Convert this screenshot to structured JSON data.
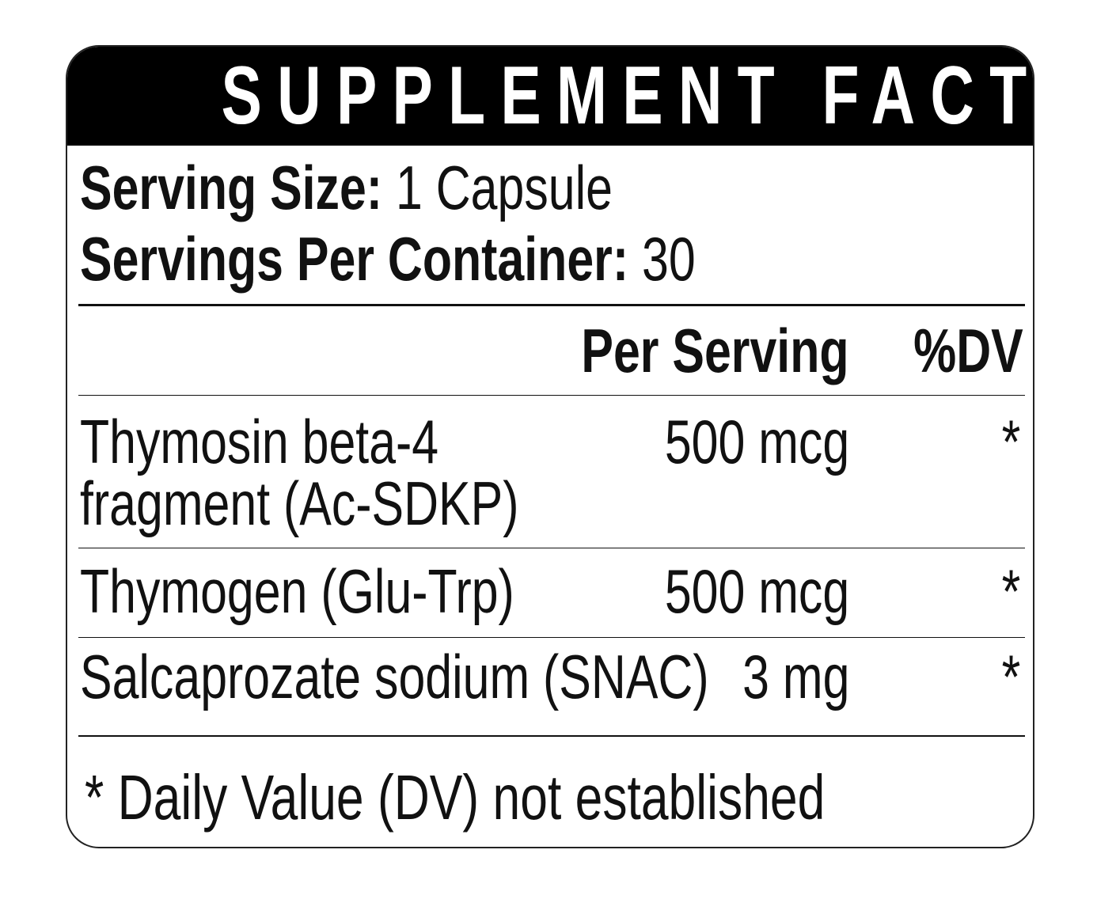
{
  "header": {
    "title": "SUPPLEMENT FACTS"
  },
  "serving": {
    "size_label": "Serving Size:",
    "size_value": "1 Capsule",
    "per_container_label": "Servings Per Container:",
    "per_container_value": "30"
  },
  "table": {
    "columns": [
      "Per Serving",
      "%DV"
    ],
    "rows": [
      [
        "Thymosin beta-4 fragment (Ac-SDKP)",
        "500 mcg",
        "*"
      ],
      [
        "Thymogen (Glu-Trp)",
        "500 mcg",
        "*"
      ],
      [
        "Salcaprozate sodium (SNAC)",
        "3 mg",
        "*"
      ]
    ]
  },
  "footnote": "* Daily Value (DV) not established"
}
